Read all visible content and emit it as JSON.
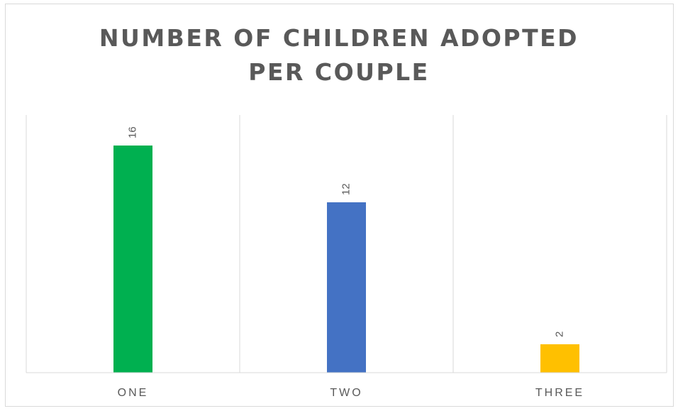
{
  "chart_data": {
    "type": "bar",
    "title_lines": [
      "NUMBER OF CHILDREN ADOPTED",
      "PER COUPLE"
    ],
    "categories": [
      "ONE",
      "TWO",
      "THREE"
    ],
    "values": [
      16,
      12,
      2
    ],
    "data_labels": [
      "16",
      "12",
      "2"
    ],
    "colors": [
      "#00b050",
      "#4472c4",
      "#ffc000"
    ],
    "ylim": [
      0,
      18
    ],
    "grid": "vertical category separators",
    "legend": "none"
  }
}
